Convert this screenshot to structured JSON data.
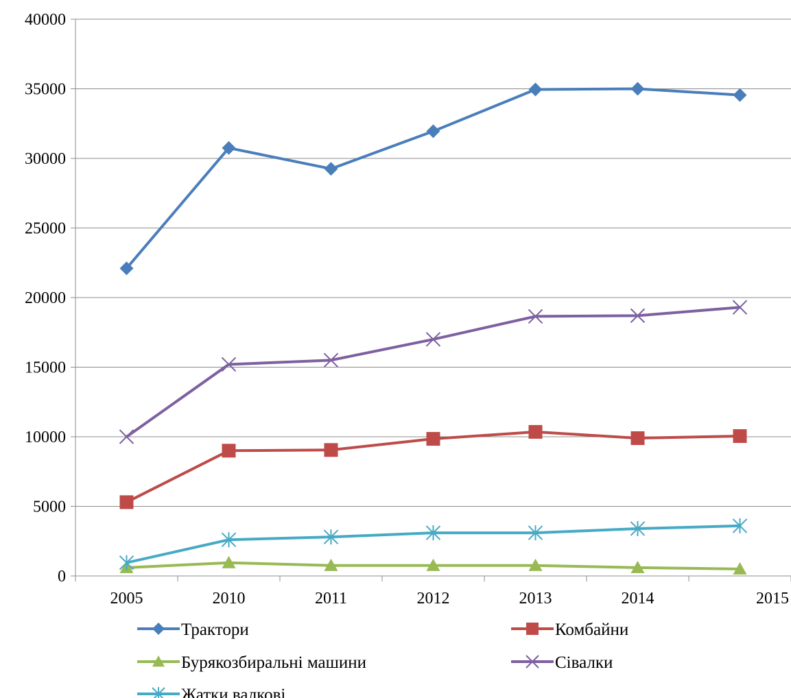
{
  "chart_data": {
    "type": "line",
    "categories": [
      "2005",
      "2010",
      "2011",
      "2012",
      "2013",
      "2014",
      "2015"
    ],
    "ylim": [
      0,
      40000
    ],
    "yticks": [
      0,
      5000,
      10000,
      15000,
      20000,
      25000,
      30000,
      35000,
      40000
    ],
    "grid": "horizontal",
    "legend_position": "bottom",
    "series": [
      {
        "name": "Трактори",
        "color": "#4a7ebb",
        "marker": "diamond",
        "values": [
          22100,
          30750,
          29250,
          31950,
          34950,
          35000,
          34550
        ]
      },
      {
        "name": "Комбайни",
        "color": "#be4b48",
        "marker": "square",
        "values": [
          5300,
          9000,
          9050,
          9850,
          10350,
          9900,
          10050
        ]
      },
      {
        "name": "Бурякозбиральні машини",
        "color": "#98b954",
        "marker": "triangle",
        "values": [
          600,
          950,
          750,
          750,
          750,
          600,
          500
        ]
      },
      {
        "name": "Сівалки",
        "color": "#7d60a0",
        "marker": "x",
        "values": [
          10000,
          15200,
          15500,
          17000,
          18650,
          18700,
          19300
        ]
      },
      {
        "name": "Жатки валкові",
        "color": "#46aac5",
        "marker": "asterisk",
        "values": [
          950,
          2600,
          2800,
          3100,
          3100,
          3400,
          3600
        ]
      }
    ]
  }
}
